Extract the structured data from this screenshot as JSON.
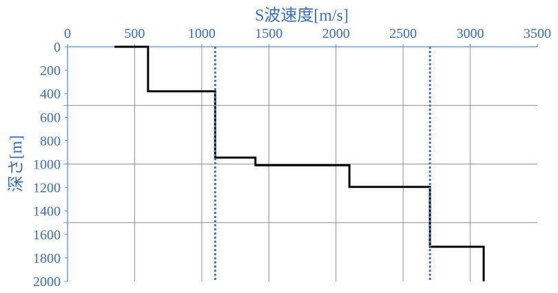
{
  "chart_data": {
    "type": "line",
    "title": "",
    "xlabel": "S波速度[m/s]",
    "ylabel": "深さ[m]",
    "xlim": [
      0,
      3500
    ],
    "ylim": [
      0,
      2000
    ],
    "y_inverted": true,
    "x_axis_position": "top",
    "x_ticks": [
      "0",
      "500",
      "1000",
      "1500",
      "2000",
      "2500",
      "3000",
      "3500"
    ],
    "y_ticks": [
      "0",
      "200",
      "400",
      "600",
      "800",
      "1000",
      "1200",
      "1400",
      "1600",
      "1800",
      "2000"
    ],
    "vertical_gridlines_x": [
      500,
      1000,
      1500,
      2000,
      2500,
      3000
    ],
    "horizontal_gridlines_y": [
      500,
      1000,
      1500
    ],
    "series": [
      {
        "color": "#000000",
        "style": "solid-step",
        "points": [
          [
            350,
            0
          ],
          [
            600,
            0
          ],
          [
            600,
            380
          ],
          [
            1100,
            380
          ],
          [
            1100,
            945
          ],
          [
            1400,
            945
          ],
          [
            1400,
            1010
          ],
          [
            2100,
            1010
          ],
          [
            2100,
            1195
          ],
          [
            2700,
            1195
          ],
          [
            2700,
            1705
          ],
          [
            3100,
            1705
          ],
          [
            3100,
            2000
          ]
        ]
      },
      {
        "color": "#3a6fd8",
        "style": "dotted-vertical",
        "x": 1100,
        "y_range": [
          0,
          2000
        ]
      },
      {
        "color": "#3a6fd8",
        "style": "dotted-vertical",
        "x": 2700,
        "y_range": [
          0,
          2000
        ]
      }
    ],
    "grid": true,
    "legend": "none",
    "colors": {
      "axis_text": "#3d6fb5",
      "axis_line": "#5b8bd4",
      "grid": "#8c8c8c"
    }
  }
}
